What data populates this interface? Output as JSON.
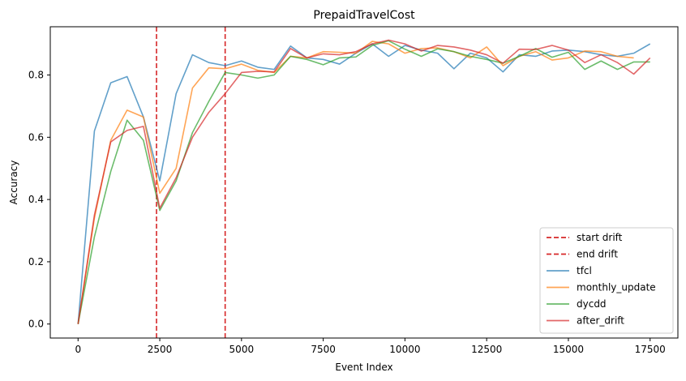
{
  "chart_data": {
    "type": "line",
    "title": "PrepaidTravelCost",
    "xlabel": "Event Index",
    "ylabel": "Accuracy",
    "xlim": [
      -850,
      18350
    ],
    "ylim": [
      -0.045,
      0.955
    ],
    "xticks": [
      0,
      2500,
      5000,
      7500,
      10000,
      12500,
      15000,
      17500
    ],
    "xtick_labels": [
      "0",
      "2500",
      "5000",
      "7500",
      "10000",
      "12500",
      "15000",
      "17500"
    ],
    "yticks": [
      0.0,
      0.2,
      0.4,
      0.6,
      0.8
    ],
    "ytick_labels": [
      "0.0",
      "0.2",
      "0.4",
      "0.6",
      "0.8"
    ],
    "grid": false,
    "legend_position": "lower-right",
    "vlines": [
      {
        "name": "start drift",
        "x": 2400,
        "color": "#d62728",
        "style": "dashed"
      },
      {
        "name": "end drift",
        "x": 4500,
        "color": "#d62728",
        "style": "dashed"
      }
    ],
    "x": [
      0,
      500,
      1000,
      1500,
      2000,
      2500,
      3000,
      3500,
      4000,
      4500,
      5000,
      5500,
      6000,
      6500,
      7000,
      7500,
      8000,
      8500,
      9000,
      9500,
      10000,
      10500,
      11000,
      11500,
      12000,
      12500,
      13000,
      13500,
      14000,
      14500,
      15000,
      15500,
      16000,
      16500,
      17000,
      17500
    ],
    "series": [
      {
        "name": "tfcl",
        "color": "#1f77b4",
        "opacity": 0.7,
        "x": [
          0,
          500,
          1000,
          1500,
          2000,
          2500,
          3000,
          3500,
          4000,
          4500,
          5000,
          5500,
          6000,
          6500,
          7000,
          7500,
          8000,
          8500,
          9000,
          9500,
          10000,
          10500,
          11000,
          11500,
          12000,
          12500,
          13000,
          13500,
          14000,
          14500,
          15000,
          15500,
          16000,
          16500,
          17000,
          17500
        ],
        "values": [
          0.0,
          0.62,
          0.775,
          0.795,
          0.665,
          0.46,
          0.74,
          0.865,
          0.84,
          0.83,
          0.845,
          0.825,
          0.818,
          0.893,
          0.855,
          0.85,
          0.835,
          0.87,
          0.9,
          0.86,
          0.895,
          0.88,
          0.87,
          0.82,
          0.87,
          0.855,
          0.81,
          0.865,
          0.86,
          0.877,
          0.88,
          0.875,
          0.865,
          0.86,
          0.87,
          0.9
        ]
      },
      {
        "name": "monthly_update",
        "color": "#ff7f0e",
        "opacity": 0.7,
        "x": [
          0,
          500,
          1000,
          1500,
          2000,
          2500,
          3000,
          3500,
          4000,
          4500,
          5000,
          5500,
          6000,
          6500,
          7000,
          7500,
          8000,
          8500,
          9000,
          9500,
          10000,
          10500,
          11000,
          11500,
          12000,
          12500,
          13000,
          13500,
          14000,
          14500,
          15000,
          15500,
          16000,
          16500,
          17000
        ],
        "values": [
          0.0,
          0.34,
          0.59,
          0.687,
          0.665,
          0.42,
          0.5,
          0.758,
          0.823,
          0.82,
          0.835,
          0.815,
          0.808,
          0.86,
          0.855,
          0.875,
          0.873,
          0.87,
          0.908,
          0.9,
          0.87,
          0.885,
          0.887,
          0.875,
          0.855,
          0.89,
          0.83,
          0.86,
          0.875,
          0.848,
          0.855,
          0.877,
          0.875,
          0.86,
          0.855
        ]
      },
      {
        "name": "dycdd",
        "color": "#2ca02c",
        "opacity": 0.7,
        "x": [
          0,
          500,
          1000,
          1500,
          2000,
          2500,
          3000,
          3500,
          4000,
          4500,
          5000,
          5500,
          6000,
          6500,
          7000,
          7500,
          8000,
          8500,
          9000,
          9500,
          10000,
          10500,
          11000,
          11500,
          12000,
          12500,
          13000,
          13500,
          14000,
          14500,
          15000,
          15500,
          16000,
          16500,
          17000,
          17500
        ],
        "values": [
          0.0,
          0.28,
          0.49,
          0.655,
          0.59,
          0.365,
          0.46,
          0.615,
          0.715,
          0.808,
          0.8,
          0.79,
          0.8,
          0.86,
          0.85,
          0.833,
          0.855,
          0.858,
          0.895,
          0.91,
          0.883,
          0.86,
          0.884,
          0.875,
          0.86,
          0.85,
          0.838,
          0.86,
          0.885,
          0.857,
          0.873,
          0.818,
          0.845,
          0.818,
          0.842,
          0.842
        ]
      },
      {
        "name": "after_drift",
        "color": "#d62728",
        "opacity": 0.7,
        "x": [
          0,
          500,
          1000,
          1500,
          2000,
          2500,
          3000,
          3500,
          4000,
          4500,
          5000,
          5500,
          6000,
          6500,
          7000,
          7500,
          8000,
          8500,
          9000,
          9500,
          10000,
          10500,
          11000,
          11500,
          12000,
          12500,
          13000,
          13500,
          14000,
          14500,
          15000,
          15500,
          16000,
          16500,
          17000,
          17500
        ],
        "values": [
          0.0,
          0.35,
          0.585,
          0.622,
          0.635,
          0.372,
          0.47,
          0.6,
          0.68,
          0.74,
          0.808,
          0.812,
          0.81,
          0.885,
          0.855,
          0.868,
          0.865,
          0.875,
          0.9,
          0.912,
          0.9,
          0.877,
          0.895,
          0.89,
          0.88,
          0.865,
          0.838,
          0.883,
          0.882,
          0.895,
          0.88,
          0.84,
          0.865,
          0.84,
          0.803,
          0.855
        ]
      }
    ],
    "legend": [
      {
        "label": "start drift",
        "color": "#d62728",
        "style": "dashed"
      },
      {
        "label": "end drift",
        "color": "#d62728",
        "style": "dashed"
      },
      {
        "label": "tfcl",
        "color": "#1f77b4",
        "style": "solid"
      },
      {
        "label": "monthly_update",
        "color": "#ff7f0e",
        "style": "solid"
      },
      {
        "label": "dycdd",
        "color": "#2ca02c",
        "style": "solid"
      },
      {
        "label": "after_drift",
        "color": "#d62728",
        "style": "solid"
      }
    ]
  }
}
